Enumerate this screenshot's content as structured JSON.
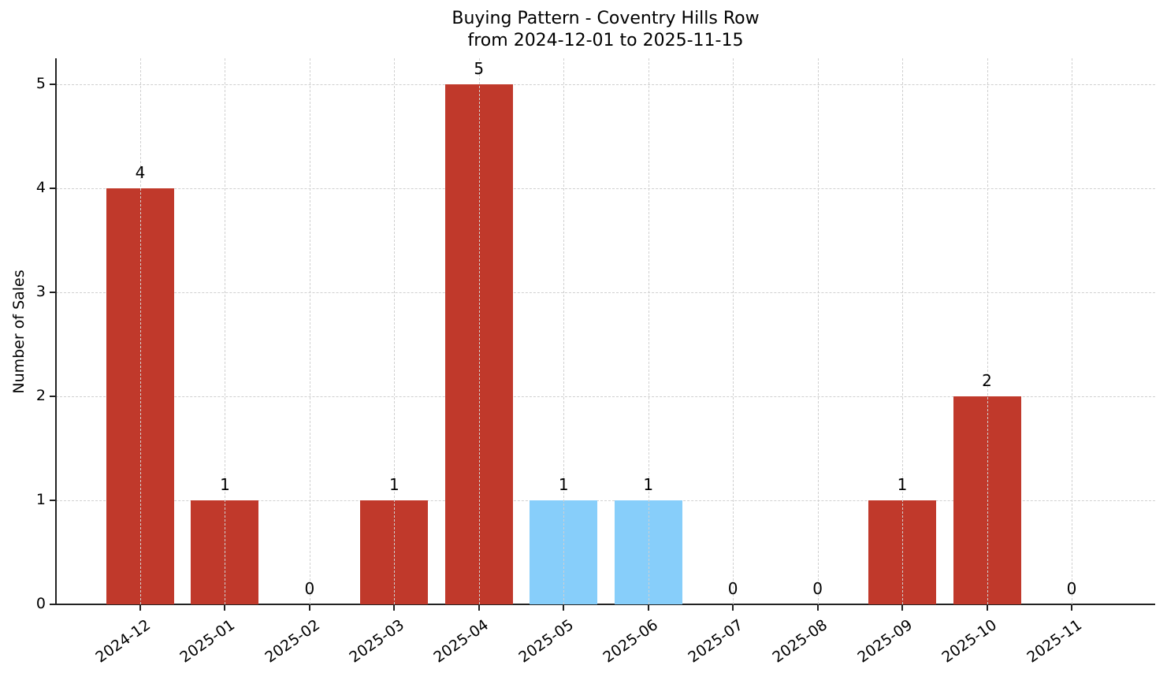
{
  "chart_data": {
    "type": "bar",
    "title": "Buying Pattern - Coventry Hills Row",
    "subtitle": "from 2024-12-01 to 2025-11-15",
    "xlabel": "",
    "ylabel": "Number of Sales",
    "ylim": [
      0,
      5.25
    ],
    "yticks": [
      0,
      1,
      2,
      3,
      4,
      5
    ],
    "grid": true,
    "legend": null,
    "categories": [
      "2024-12",
      "2025-01",
      "2025-02",
      "2025-03",
      "2025-04",
      "2025-05",
      "2025-06",
      "2025-07",
      "2025-08",
      "2025-09",
      "2025-10",
      "2025-11"
    ],
    "values": [
      4,
      1,
      0,
      1,
      5,
      1,
      1,
      0,
      0,
      1,
      2,
      0
    ],
    "bar_colors": [
      "#c0392b",
      "#c0392b",
      "#c0392b",
      "#c0392b",
      "#c0392b",
      "#87cefa",
      "#87cefa",
      "#c0392b",
      "#c0392b",
      "#c0392b",
      "#c0392b",
      "#c0392b"
    ],
    "colors": {
      "default": "#c0392b",
      "highlight": "#87cefa"
    }
  }
}
